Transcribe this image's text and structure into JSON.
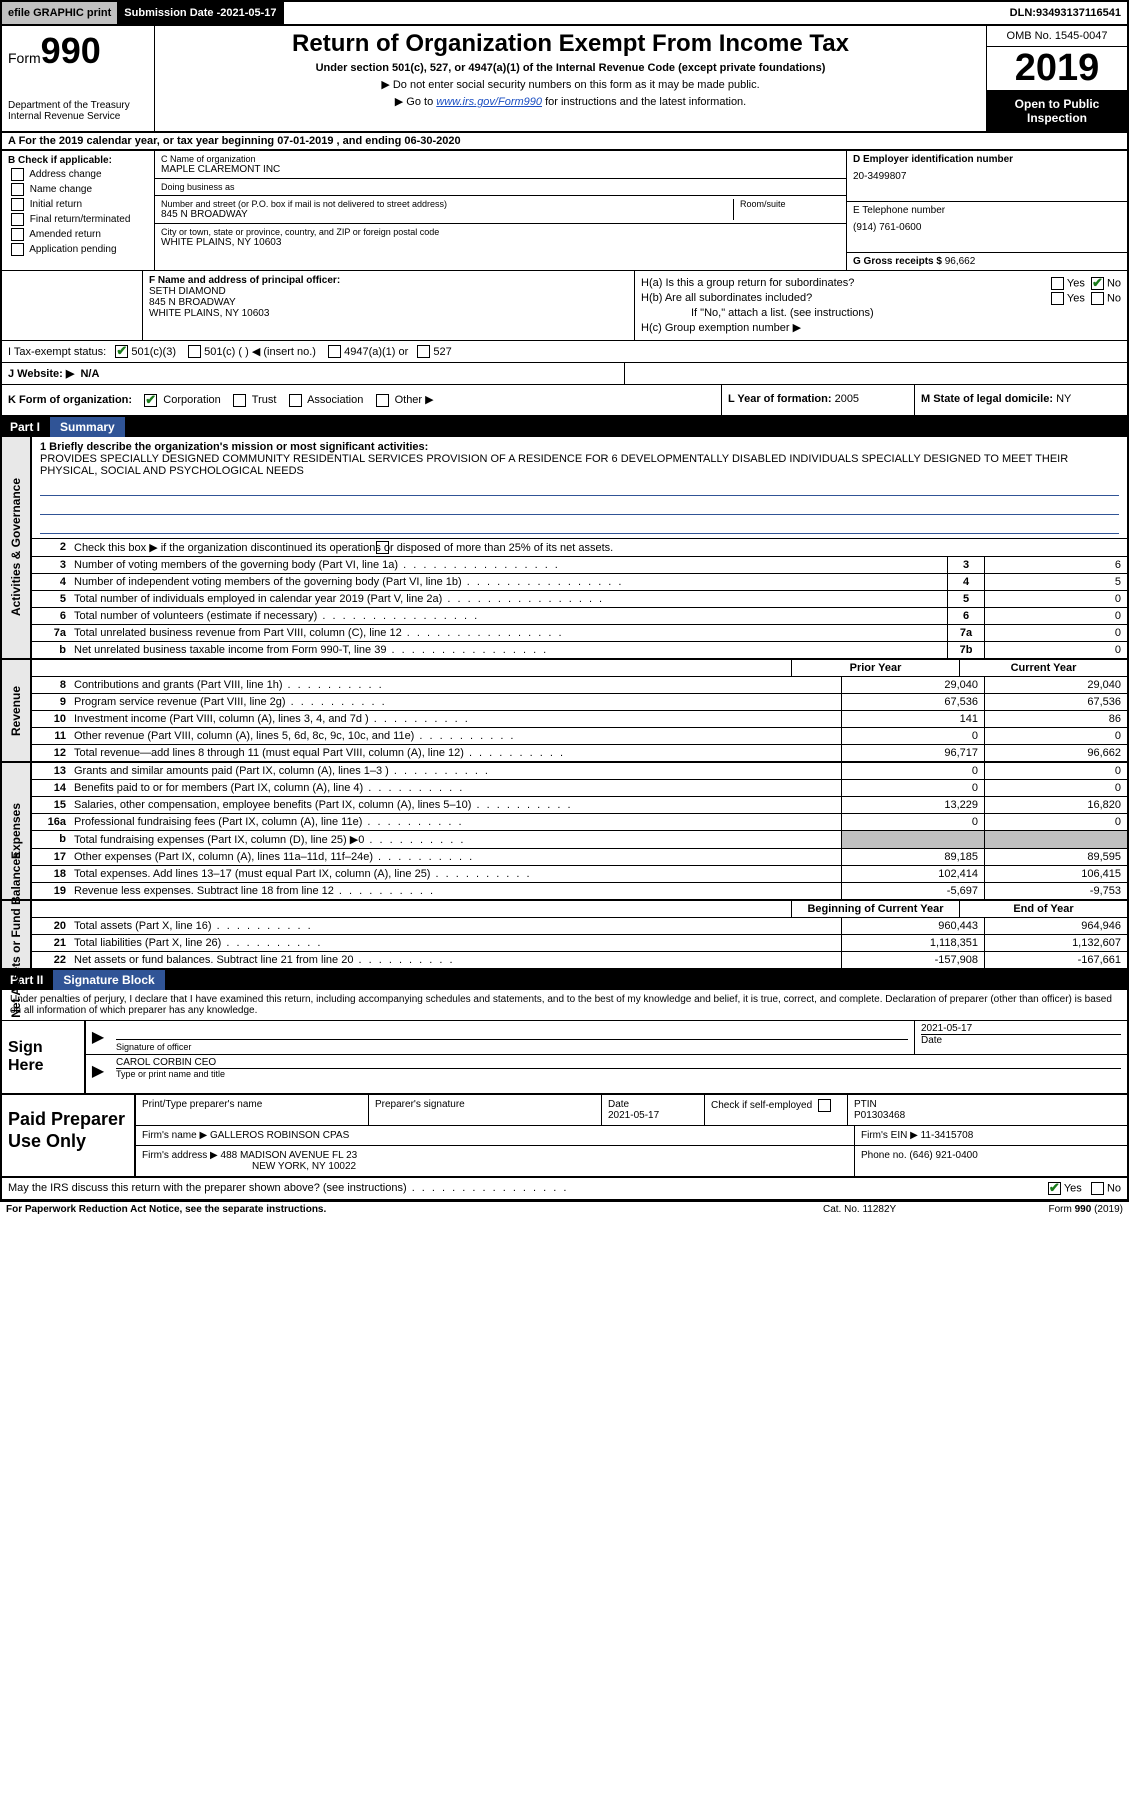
{
  "topbar": {
    "efile": "efile GRAPHIC print",
    "submission_label": "Submission Date - ",
    "submission_date": "2021-05-17",
    "dln_label": "DLN: ",
    "dln": "93493137116541"
  },
  "header": {
    "form_prefix": "Form",
    "form_number": "990",
    "dept": "Department of the Treasury\nInternal Revenue Service",
    "title": "Return of Organization Exempt From Income Tax",
    "sub1": "Under section 501(c), 527, or 4947(a)(1) of the Internal Revenue Code (except private foundations)",
    "sub2": "Do not enter social security numbers on this form as it may be made public.",
    "sub3_prefix": "Go to ",
    "sub3_link": "www.irs.gov/Form990",
    "sub3_suffix": " for instructions and the latest information.",
    "omb": "OMB No. 1545-0047",
    "year": "2019",
    "open_public": "Open to Public Inspection"
  },
  "period": {
    "line": "A For the 2019 calendar year, or tax year beginning 07-01-2019    , and ending 06-30-2020"
  },
  "box_b": {
    "header": "B Check if applicable:",
    "items": [
      "Address change",
      "Name change",
      "Initial return",
      "Final return/terminated",
      "Amended return",
      "Application pending"
    ]
  },
  "box_c": {
    "name_label": "C Name of organization",
    "name": "MAPLE CLAREMONT INC",
    "dba_label": "Doing business as",
    "dba": "",
    "addr_label": "Number and street (or P.O. box if mail is not delivered to street address)",
    "room_label": "Room/suite",
    "addr": "845 N BROADWAY",
    "city_label": "City or town, state or province, country, and ZIP or foreign postal code",
    "city": "WHITE PLAINS, NY  10603"
  },
  "box_d": {
    "label": "D Employer identification number",
    "value": "20-3499807"
  },
  "box_e": {
    "label": "E Telephone number",
    "value": "(914) 761-0600"
  },
  "box_g": {
    "label": "G Gross receipts $",
    "value": "96,662"
  },
  "box_f": {
    "label": "F  Name and address of principal officer:",
    "name": "SETH DIAMOND",
    "addr1": "845 N BROADWAY",
    "addr2": "WHITE PLAINS, NY  10603"
  },
  "box_h": {
    "a": "H(a)  Is this a group return for subordinates?",
    "a_yes": "Yes",
    "a_no": "No",
    "b": "H(b)  Are all subordinates included?",
    "b_yes": "Yes",
    "b_no": "No",
    "b_note": "If \"No,\" attach a list. (see instructions)",
    "c": "H(c)  Group exemption number ▶"
  },
  "tax_status": {
    "label": "I   Tax-exempt status:",
    "opts": [
      "501(c)(3)",
      "501(c) (   ) ◀ (insert no.)",
      "4947(a)(1) or",
      "527"
    ]
  },
  "website": {
    "label": "J   Website: ▶",
    "value": "N/A"
  },
  "box_k": {
    "label": "K Form of organization:",
    "opts": [
      "Corporation",
      "Trust",
      "Association",
      "Other ▶"
    ]
  },
  "box_l": {
    "label": "L Year of formation:",
    "value": "2005"
  },
  "box_m": {
    "label": "M State of legal domicile:",
    "value": "NY"
  },
  "parts": {
    "p1": {
      "num": "Part I",
      "title": "Summary"
    },
    "p2": {
      "num": "Part II",
      "title": "Signature Block"
    }
  },
  "summary": {
    "line1_label": "1  Briefly describe the organization's mission or most significant activities:",
    "line1_text": "PROVIDES SPECIALLY DESIGNED COMMUNITY RESIDENTIAL SERVICES PROVISION OF A RESIDENCE FOR 6 DEVELOPMENTALLY DISABLED INDIVIDUALS SPECIALLY DESIGNED TO MEET THEIR PHYSICAL, SOCIAL AND PSYCHOLOGICAL NEEDS",
    "line2": "Check this box ▶       if the organization discontinued its operations or disposed of more than 25% of its net assets.",
    "gov_lines": [
      {
        "n": "3",
        "t": "Number of voting members of the governing body (Part VI, line 1a)",
        "box": "3",
        "v": "6"
      },
      {
        "n": "4",
        "t": "Number of independent voting members of the governing body (Part VI, line 1b)",
        "box": "4",
        "v": "5"
      },
      {
        "n": "5",
        "t": "Total number of individuals employed in calendar year 2019 (Part V, line 2a)",
        "box": "5",
        "v": "0"
      },
      {
        "n": "6",
        "t": "Total number of volunteers (estimate if necessary)",
        "box": "6",
        "v": "0"
      },
      {
        "n": "7a",
        "t": "Total unrelated business revenue from Part VIII, column (C), line 12",
        "box": "7a",
        "v": "0"
      },
      {
        "n": "b",
        "t": "Net unrelated business taxable income from Form 990-T, line 39",
        "box": "7b",
        "v": "0"
      }
    ],
    "col_headers": {
      "prior": "Prior Year",
      "current": "Current Year"
    },
    "rev_lines": [
      {
        "n": "8",
        "t": "Contributions and grants (Part VIII, line 1h)",
        "py": "29,040",
        "cy": "29,040"
      },
      {
        "n": "9",
        "t": "Program service revenue (Part VIII, line 2g)",
        "py": "67,536",
        "cy": "67,536"
      },
      {
        "n": "10",
        "t": "Investment income (Part VIII, column (A), lines 3, 4, and 7d )",
        "py": "141",
        "cy": "86"
      },
      {
        "n": "11",
        "t": "Other revenue (Part VIII, column (A), lines 5, 6d, 8c, 9c, 10c, and 11e)",
        "py": "0",
        "cy": "0"
      },
      {
        "n": "12",
        "t": "Total revenue—add lines 8 through 11 (must equal Part VIII, column (A), line 12)",
        "py": "96,717",
        "cy": "96,662"
      }
    ],
    "exp_lines": [
      {
        "n": "13",
        "t": "Grants and similar amounts paid (Part IX, column (A), lines 1–3 )",
        "py": "0",
        "cy": "0"
      },
      {
        "n": "14",
        "t": "Benefits paid to or for members (Part IX, column (A), line 4)",
        "py": "0",
        "cy": "0"
      },
      {
        "n": "15",
        "t": "Salaries, other compensation, employee benefits (Part IX, column (A), lines 5–10)",
        "py": "13,229",
        "cy": "16,820"
      },
      {
        "n": "16a",
        "t": "Professional fundraising fees (Part IX, column (A), line 11e)",
        "py": "0",
        "cy": "0"
      },
      {
        "n": "b",
        "t": "Total fundraising expenses (Part IX, column (D), line 25) ▶0",
        "py": "",
        "cy": "",
        "shade": true
      },
      {
        "n": "17",
        "t": "Other expenses (Part IX, column (A), lines 11a–11d, 11f–24e)",
        "py": "89,185",
        "cy": "89,595"
      },
      {
        "n": "18",
        "t": "Total expenses. Add lines 13–17 (must equal Part IX, column (A), line 25)",
        "py": "102,414",
        "cy": "106,415"
      },
      {
        "n": "19",
        "t": "Revenue less expenses. Subtract line 18 from line 12",
        "py": "-5,697",
        "cy": "-9,753"
      }
    ],
    "na_headers": {
      "beg": "Beginning of Current Year",
      "end": "End of Year"
    },
    "na_lines": [
      {
        "n": "20",
        "t": "Total assets (Part X, line 16)",
        "py": "960,443",
        "cy": "964,946"
      },
      {
        "n": "21",
        "t": "Total liabilities (Part X, line 26)",
        "py": "1,118,351",
        "cy": "1,132,607"
      },
      {
        "n": "22",
        "t": "Net assets or fund balances. Subtract line 21 from line 20",
        "py": "-157,908",
        "cy": "-167,661"
      }
    ]
  },
  "vtabs": {
    "gov": "Activities & Governance",
    "rev": "Revenue",
    "exp": "Expenses",
    "na": "Net Assets or Fund Balances"
  },
  "sig": {
    "declaration": "Under penalties of perjury, I declare that I have examined this return, including accompanying schedules and statements, and to the best of my knowledge and belief, it is true, correct, and complete. Declaration of preparer (other than officer) is based on all information of which preparer has any knowledge.",
    "sign_here": "Sign Here",
    "sig_officer_label": "Signature of officer",
    "date_label": "Date",
    "date": "2021-05-17",
    "name_title": "CAROL CORBIN  CEO",
    "name_title_label": "Type or print name and title"
  },
  "paid": {
    "title": "Paid Preparer Use Only",
    "r1": {
      "c1_lab": "Print/Type preparer's name",
      "c1": "",
      "c2_lab": "Preparer's signature",
      "c2": "",
      "c3_lab": "Date",
      "c3": "2021-05-17",
      "c4_lab": "Check        if self-employed",
      "c5_lab": "PTIN",
      "c5": "P01303468"
    },
    "r2": {
      "lab": "Firm's name     ▶",
      "val": "GALLEROS ROBINSON CPAS",
      "ein_lab": "Firm's EIN ▶",
      "ein": "11-3415708"
    },
    "r3": {
      "lab": "Firm's address ▶",
      "val1": "488 MADISON AVENUE FL 23",
      "val2": "NEW YORK, NY  10022",
      "ph_lab": "Phone no.",
      "ph": "(646) 921-0400"
    },
    "discuss": "May the IRS discuss this return with the preparer shown above? (see instructions)",
    "yes": "Yes",
    "no": "No"
  },
  "footer": {
    "l": "For Paperwork Reduction Act Notice, see the separate instructions.",
    "m": "Cat. No. 11282Y",
    "r": "Form 990 (2019)"
  }
}
